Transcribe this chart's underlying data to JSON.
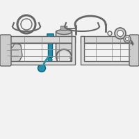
{
  "bg_color": "#f2f2f2",
  "highlight_color": "#2a8fa8",
  "part_color": "#cccccc",
  "part_edge": "#888888",
  "dark_color": "#555555",
  "line_color": "#666666",
  "white": "#f8f8f8",
  "figsize": [
    2.0,
    2.0
  ],
  "dpi": 100
}
